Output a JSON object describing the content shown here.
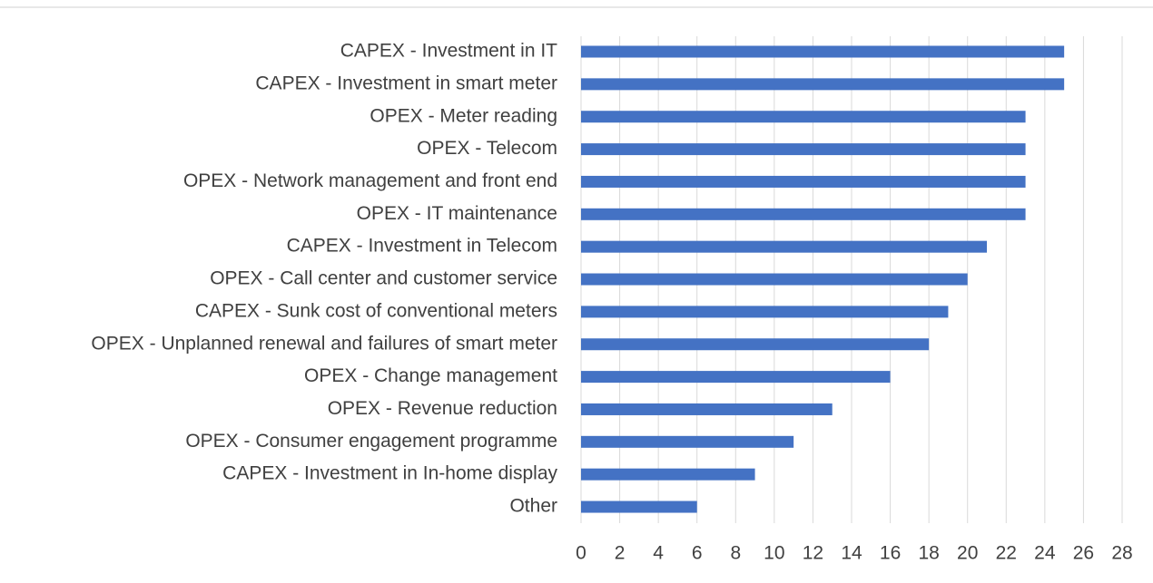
{
  "chart_data": {
    "type": "bar",
    "orientation": "horizontal",
    "categories": [
      "CAPEX - Investment in IT",
      "CAPEX - Investment in smart meter",
      "OPEX - Meter reading",
      "OPEX - Telecom",
      "OPEX - Network management and front end ",
      "OPEX - IT maintenance",
      "CAPEX - Investment in Telecom",
      "OPEX - Call center and customer service",
      "CAPEX - Sunk cost of conventional meters",
      "OPEX - Unplanned renewal and failures of smart meter",
      "OPEX - Change management",
      "OPEX - Revenue reduction",
      "OPEX - Consumer engagement programme",
      "CAPEX - Investment in In-home display",
      "Other"
    ],
    "values": [
      25,
      25,
      23,
      23,
      23,
      23,
      21,
      20,
      19,
      18,
      16,
      13,
      11,
      9,
      6
    ],
    "color": "#4472c4",
    "xlim": [
      0,
      28
    ],
    "xticks": [
      0,
      2,
      4,
      6,
      8,
      10,
      12,
      14,
      16,
      18,
      20,
      22,
      24,
      26,
      28
    ],
    "grid": true
  }
}
